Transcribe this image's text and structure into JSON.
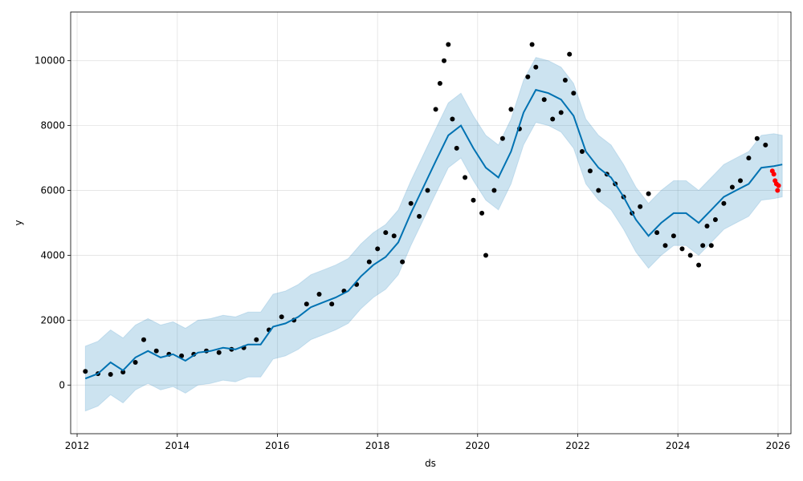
{
  "chart_data": {
    "type": "line",
    "xlabel": "ds",
    "ylabel": "y",
    "xlim": [
      "2011-11-15",
      "2026-04-05"
    ],
    "ylim": [
      -1500,
      11500
    ],
    "x_ticks": [
      "2012",
      "2014",
      "2016",
      "2018",
      "2020",
      "2022",
      "2024",
      "2026"
    ],
    "y_ticks": [
      0,
      2000,
      4000,
      6000,
      8000,
      10000
    ],
    "y_tick_labels": [
      "0",
      "2000",
      "4000",
      "6000",
      "8000",
      "10000"
    ],
    "grid": true,
    "colors": {
      "forecast_line": "#0072b2",
      "uncertainty_band": "#0072b2",
      "actual_points": "#000000",
      "highlighted_points": "#ff0000"
    },
    "series": [
      {
        "kind": "forecast",
        "x": [
          "2012-03",
          "2012-06",
          "2012-09",
          "2012-12",
          "2013-03",
          "2013-06",
          "2013-09",
          "2013-12",
          "2014-03",
          "2014-06",
          "2014-09",
          "2014-12",
          "2015-03",
          "2015-06",
          "2015-09",
          "2015-12",
          "2016-03",
          "2016-06",
          "2016-09",
          "2016-12",
          "2017-03",
          "2017-06",
          "2017-09",
          "2017-12",
          "2018-03",
          "2018-06",
          "2018-09",
          "2018-12",
          "2019-03",
          "2019-06",
          "2019-09",
          "2019-12",
          "2020-03",
          "2020-06",
          "2020-09",
          "2020-12",
          "2021-03",
          "2021-06",
          "2021-09",
          "2021-12",
          "2022-03",
          "2022-06",
          "2022-09",
          "2022-12",
          "2023-03",
          "2023-06",
          "2023-09",
          "2023-12",
          "2024-03",
          "2024-06",
          "2024-09",
          "2024-12",
          "2025-03",
          "2025-06",
          "2025-09",
          "2025-12",
          "2026-02"
        ],
        "y": [
          200,
          350,
          700,
          450,
          850,
          1050,
          850,
          950,
          750,
          1000,
          1050,
          1150,
          1100,
          1250,
          1250,
          1800,
          1900,
          2100,
          2400,
          2550,
          2700,
          2900,
          3350,
          3700,
          3950,
          4400,
          5300,
          6100,
          6900,
          7700,
          8000,
          7300,
          6700,
          6400,
          7200,
          8400,
          9100,
          9000,
          8800,
          8300,
          7200,
          6700,
          6400,
          5800,
          5100,
          4600,
          5000,
          5300,
          5300,
          5000,
          5400,
          5800,
          6000,
          6200,
          6700,
          6750,
          6800
        ]
      },
      {
        "kind": "uncertainty-upper",
        "x": [
          "2012-03",
          "2012-06",
          "2012-09",
          "2012-12",
          "2013-03",
          "2013-06",
          "2013-09",
          "2013-12",
          "2014-03",
          "2014-06",
          "2014-09",
          "2014-12",
          "2015-03",
          "2015-06",
          "2015-09",
          "2015-12",
          "2016-03",
          "2016-06",
          "2016-09",
          "2016-12",
          "2017-03",
          "2017-06",
          "2017-09",
          "2017-12",
          "2018-03",
          "2018-06",
          "2018-09",
          "2018-12",
          "2019-03",
          "2019-06",
          "2019-09",
          "2019-12",
          "2020-03",
          "2020-06",
          "2020-09",
          "2020-12",
          "2021-03",
          "2021-06",
          "2021-09",
          "2021-12",
          "2022-03",
          "2022-06",
          "2022-09",
          "2022-12",
          "2023-03",
          "2023-06",
          "2023-09",
          "2023-12",
          "2024-03",
          "2024-06",
          "2024-09",
          "2024-12",
          "2025-03",
          "2025-06",
          "2025-09",
          "2025-12",
          "2026-02"
        ],
        "y": [
          1200,
          1350,
          1700,
          1450,
          1850,
          2050,
          1850,
          1950,
          1750,
          2000,
          2050,
          2150,
          2100,
          2250,
          2250,
          2800,
          2900,
          3100,
          3400,
          3550,
          3700,
          3900,
          4350,
          4700,
          4950,
          5400,
          6300,
          7100,
          7900,
          8700,
          9000,
          8300,
          7700,
          7400,
          8200,
          9400,
          10100,
          10000,
          9800,
          9300,
          8200,
          7700,
          7400,
          6800,
          6100,
          5600,
          6000,
          6300,
          6300,
          6000,
          6400,
          6800,
          7000,
          7200,
          7700,
          7750,
          7700
        ]
      },
      {
        "kind": "uncertainty-lower",
        "x": [
          "2012-03",
          "2012-06",
          "2012-09",
          "2012-12",
          "2013-03",
          "2013-06",
          "2013-09",
          "2013-12",
          "2014-03",
          "2014-06",
          "2014-09",
          "2014-12",
          "2015-03",
          "2015-06",
          "2015-09",
          "2015-12",
          "2016-03",
          "2016-06",
          "2016-09",
          "2016-12",
          "2017-03",
          "2017-06",
          "2017-09",
          "2017-12",
          "2018-03",
          "2018-06",
          "2018-09",
          "2018-12",
          "2019-03",
          "2019-06",
          "2019-09",
          "2019-12",
          "2020-03",
          "2020-06",
          "2020-09",
          "2020-12",
          "2021-03",
          "2021-06",
          "2021-09",
          "2021-12",
          "2022-03",
          "2022-06",
          "2022-09",
          "2022-12",
          "2023-03",
          "2023-06",
          "2023-09",
          "2023-12",
          "2024-03",
          "2024-06",
          "2024-09",
          "2024-12",
          "2025-03",
          "2025-06",
          "2025-09",
          "2025-12",
          "2026-02"
        ],
        "y": [
          -800,
          -650,
          -300,
          -550,
          -150,
          50,
          -150,
          -50,
          -250,
          0,
          50,
          150,
          100,
          250,
          250,
          800,
          900,
          1100,
          1400,
          1550,
          1700,
          1900,
          2350,
          2700,
          2950,
          3400,
          4300,
          5100,
          5900,
          6700,
          7000,
          6300,
          5700,
          5400,
          6200,
          7400,
          8100,
          8000,
          7800,
          7300,
          6200,
          5700,
          5400,
          4800,
          4100,
          3600,
          4000,
          4300,
          4300,
          4000,
          4400,
          4800,
          5000,
          5200,
          5700,
          5750,
          5800
        ]
      },
      {
        "kind": "actual",
        "x": [
          "2012-03",
          "2012-06",
          "2012-09",
          "2012-12",
          "2013-03",
          "2013-05",
          "2013-08",
          "2013-11",
          "2014-02",
          "2014-05",
          "2014-08",
          "2014-11",
          "2015-02",
          "2015-05",
          "2015-08",
          "2015-11",
          "2016-02",
          "2016-05",
          "2016-08",
          "2016-11",
          "2017-02",
          "2017-05",
          "2017-08",
          "2017-11",
          "2018-01",
          "2018-03",
          "2018-05",
          "2018-07",
          "2018-09",
          "2018-11",
          "2019-01",
          "2019-03",
          "2019-04",
          "2019-05",
          "2019-06",
          "2019-07",
          "2019-08",
          "2019-10",
          "2019-12",
          "2020-02",
          "2020-03",
          "2020-05",
          "2020-07",
          "2020-09",
          "2020-11",
          "2021-01",
          "2021-02",
          "2021-03",
          "2021-05",
          "2021-07",
          "2021-09",
          "2021-10",
          "2021-11",
          "2021-12",
          "2022-02",
          "2022-04",
          "2022-06",
          "2022-08",
          "2022-10",
          "2022-12",
          "2023-02",
          "2023-04",
          "2023-06",
          "2023-08",
          "2023-10",
          "2023-12",
          "2024-02",
          "2024-04",
          "2024-06",
          "2024-07",
          "2024-08",
          "2024-09",
          "2024-10",
          "2024-12",
          "2025-02",
          "2025-04",
          "2025-06",
          "2025-08",
          "2025-10"
        ],
        "y": [
          420,
          350,
          330,
          400,
          700,
          1400,
          1050,
          950,
          900,
          950,
          1050,
          1000,
          1100,
          1150,
          1400,
          1700,
          2100,
          2000,
          2500,
          2800,
          2500,
          2900,
          3100,
          3800,
          4200,
          4700,
          4600,
          3800,
          5600,
          5200,
          6000,
          8500,
          9300,
          10000,
          10500,
          8200,
          7300,
          6400,
          5700,
          5300,
          4000,
          6000,
          7600,
          8500,
          7900,
          9500,
          10500,
          9800,
          8800,
          8200,
          8400,
          9400,
          10200,
          9000,
          7200,
          6600,
          6000,
          6500,
          6200,
          5800,
          5300,
          5500,
          5900,
          4700,
          4300,
          4600,
          4200,
          4000,
          3700,
          4300,
          4900,
          4300,
          5100,
          5600,
          6100,
          6300,
          7000,
          7600,
          7400
        ]
      },
      {
        "kind": "highlighted",
        "x": [
          "2025-11-20",
          "2025-12-01",
          "2025-12-10",
          "2025-12-20",
          "2025-12-28",
          "2026-01-05"
        ],
        "y": [
          6600,
          6500,
          6300,
          6200,
          6000,
          6150
        ]
      }
    ]
  }
}
